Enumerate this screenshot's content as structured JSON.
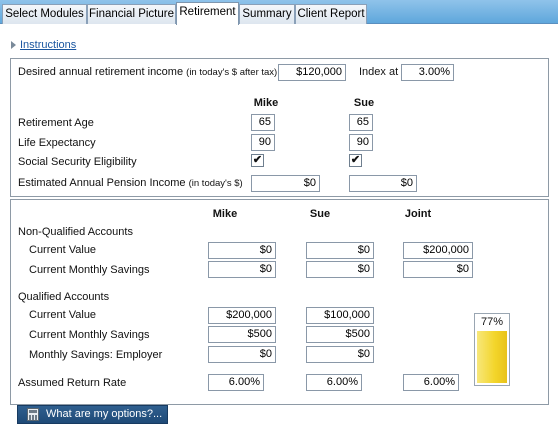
{
  "tabs": [
    {
      "label": "Select Modules"
    },
    {
      "label": "Financial Picture"
    },
    {
      "label": "Retirement",
      "active": true
    },
    {
      "label": "Summary"
    },
    {
      "label": "Client Report"
    }
  ],
  "instructions_label": "Instructions",
  "goal": {
    "income_label": "Desired annual retirement income",
    "income_note": "(in today's $ after tax)",
    "income_value": "$120,000",
    "index_label": "Index at",
    "index_value": "3.00%"
  },
  "people": {
    "person1": "Mike",
    "person2": "Sue",
    "joint": "Joint"
  },
  "personal": {
    "retirement_age_label": "Retirement Age",
    "retirement_age": {
      "mike": "65",
      "sue": "65"
    },
    "life_expectancy_label": "Life Expectancy",
    "life_expectancy": {
      "mike": "90",
      "sue": "90"
    },
    "ss_label": "Social Security Eligibility",
    "ss_checked": {
      "mike": true,
      "sue": true
    },
    "check_mark": "✔",
    "pension_label": "Estimated Annual Pension Income",
    "pension_note": "(in today's $)",
    "pension": {
      "mike": "$0",
      "sue": "$0"
    }
  },
  "accounts": {
    "nonqual_title": "Non-Qualified Accounts",
    "current_value_label": "Current Value",
    "monthly_savings_label": "Current Monthly Savings",
    "nonqual": {
      "current_value": {
        "mike": "$0",
        "sue": "$0",
        "joint": "$200,000"
      },
      "monthly_savings": {
        "mike": "$0",
        "sue": "$0",
        "joint": "$0"
      }
    },
    "qual_title": "Qualified Accounts",
    "employer_label": "Monthly Savings: Employer",
    "qual": {
      "current_value": {
        "mike": "$200,000",
        "sue": "$100,000"
      },
      "monthly_savings": {
        "mike": "$500",
        "sue": "$500"
      },
      "employer": {
        "mike": "$0",
        "sue": "$0"
      }
    },
    "return_label": "Assumed Return Rate",
    "return_rate": {
      "mike": "6.00%",
      "sue": "6.00%",
      "joint": "6.00%"
    }
  },
  "gauge": {
    "label": "77%",
    "percent": 77
  },
  "options_button": "What are my options?..."
}
